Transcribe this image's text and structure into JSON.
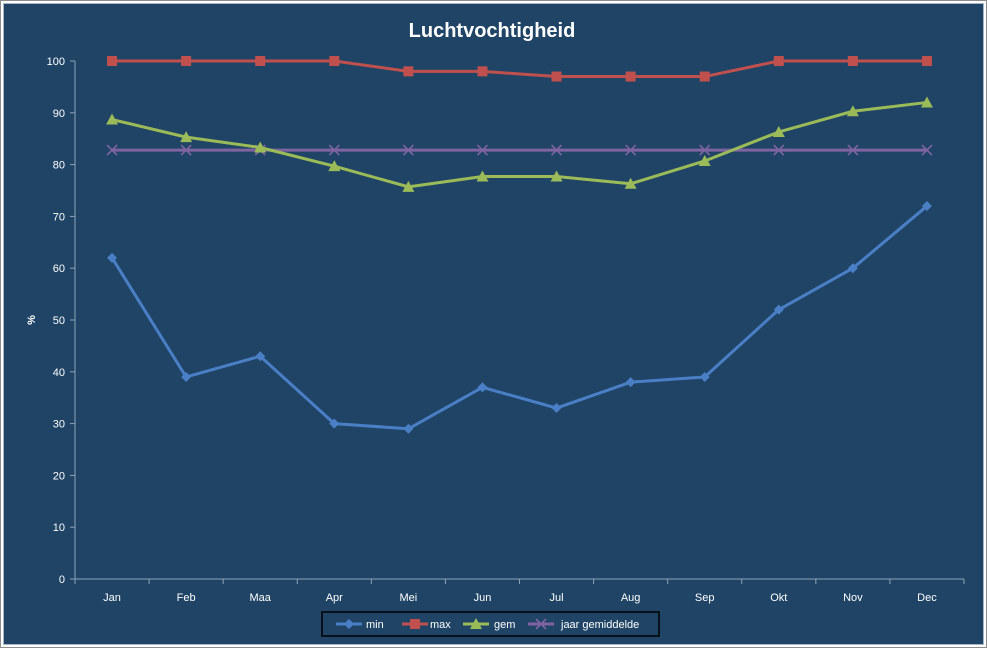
{
  "chart_data": {
    "type": "line",
    "title": "Luchtvochtigheid",
    "xlabel": "",
    "ylabel": "%",
    "ylim": [
      0,
      100
    ],
    "yticks": [
      0,
      10,
      20,
      30,
      40,
      50,
      60,
      70,
      80,
      90,
      100
    ],
    "categories": [
      "Jan",
      "Feb",
      "Maa",
      "Apr",
      "Mei",
      "Jun",
      "Jul",
      "Aug",
      "Sep",
      "Okt",
      "Nov",
      "Dec"
    ],
    "grid": false,
    "legend_position": "bottom",
    "series": [
      {
        "name": "min",
        "color": "#4a7fc6",
        "marker": "diamond",
        "values": [
          62,
          39,
          43,
          30,
          29,
          37,
          33,
          38,
          39,
          52,
          60,
          72
        ]
      },
      {
        "name": "max",
        "color": "#c0504d",
        "marker": "square",
        "values": [
          100,
          100,
          100,
          100,
          98,
          98,
          97,
          97,
          97,
          100,
          100,
          100
        ]
      },
      {
        "name": "gem",
        "color": "#9bbb59",
        "marker": "triangle",
        "values": [
          88.7,
          85.3,
          83.3,
          79.7,
          75.7,
          77.7,
          77.7,
          76.3,
          80.7,
          86.3,
          90.3,
          92
        ]
      },
      {
        "name": "jaar gemiddelde",
        "color": "#8064a2",
        "marker": "x",
        "values": [
          82.8,
          82.8,
          82.8,
          82.8,
          82.8,
          82.8,
          82.8,
          82.8,
          82.8,
          82.8,
          82.8,
          82.8
        ]
      }
    ]
  }
}
